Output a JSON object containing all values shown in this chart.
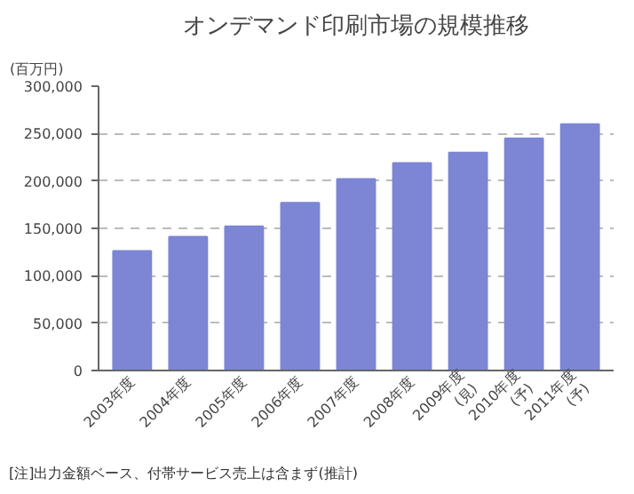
{
  "chart_data": {
    "type": "bar",
    "title": "オンデマンド印刷市場の規模推移",
    "ylabel": "(百万円)",
    "categories": [
      "2003年度",
      "2004年度",
      "2005年度",
      "2006年度",
      "2007年度",
      "2008年度",
      "2009年度\n(見)",
      "2010年度\n(予)",
      "2011年度\n(予)"
    ],
    "values": [
      126000,
      141000,
      152000,
      177000,
      202000,
      219000,
      230000,
      245000,
      260000
    ],
    "color": "#7c86d4",
    "ylim": [
      0,
      300000
    ],
    "yticks": [
      {
        "value": 0,
        "label": "0"
      },
      {
        "value": 50000,
        "label": "50,000"
      },
      {
        "value": 100000,
        "label": "100,000"
      },
      {
        "value": 150000,
        "label": "150,000"
      },
      {
        "value": 200000,
        "label": "200,000"
      },
      {
        "value": 250000,
        "label": "250,000"
      },
      {
        "value": 300000,
        "label": "300,000"
      }
    ],
    "grid": "y",
    "annotations": [
      "[注]出力金額ベース、付帯サービス売上は含まず",
      "(推計)"
    ]
  }
}
